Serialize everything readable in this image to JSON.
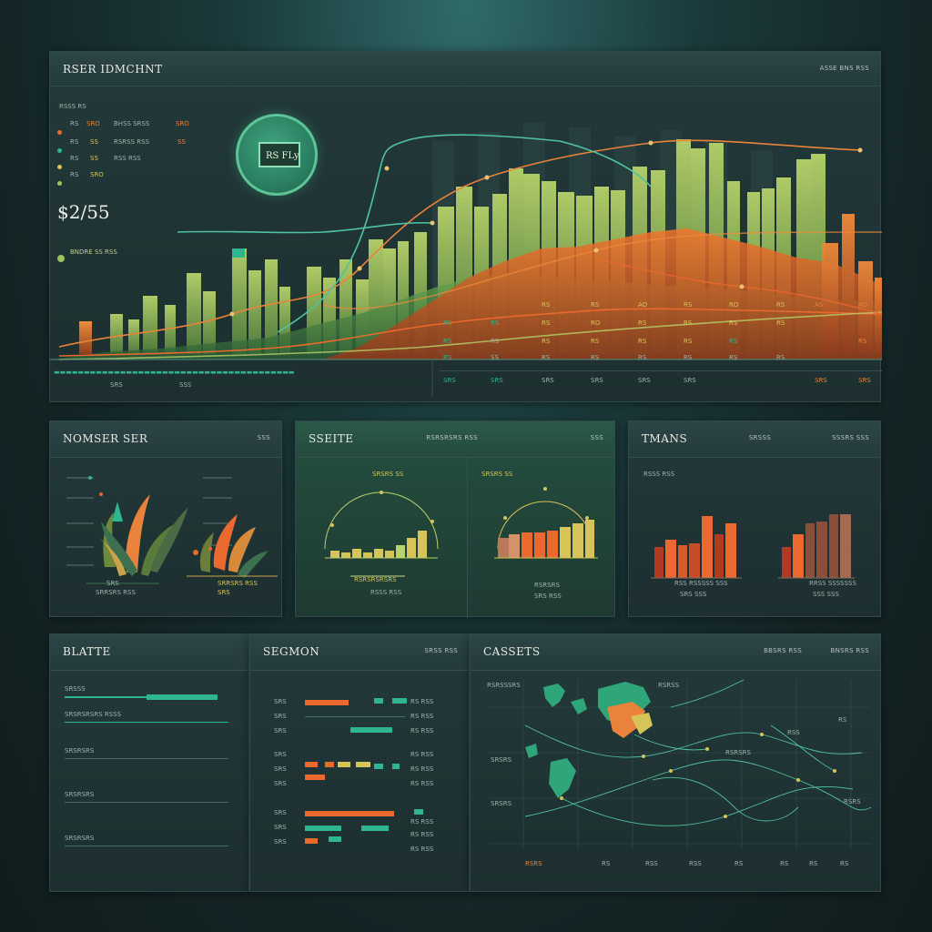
{
  "colors": {
    "accent_orange": "#e9692e",
    "accent_green": "#2fb590",
    "accent_yellow": "#d6c35a",
    "accent_lime": "#9cc45b",
    "panel_bg": "#1f3334",
    "background": "#142526"
  },
  "main_panel": {
    "title": "RSER IDMCHNT",
    "meta": "ASSE BNS RSS",
    "big_value": "$2/55",
    "sub_label": "BNDRE SS RSS",
    "badge_label": "RS FLy",
    "legend": [
      {
        "label": "RS",
        "value": "SRO",
        "tag": "BHSS SRSS",
        "color": "#e9823a"
      },
      {
        "label": "RS",
        "value": "SS",
        "tag": "RSRSS RSS",
        "color": "#2fb590"
      },
      {
        "label": "RS",
        "value": "SS",
        "tag": "RSS RSS",
        "color": "#d6c35a"
      },
      {
        "label": "RS",
        "value": "SRO",
        "tag": "",
        "color": "#9cc45b"
      }
    ],
    "top_note": "RSSS RS",
    "x_ticks_left": [
      "SRS",
      "SSS"
    ],
    "table_rows": [
      [
        "RS",
        "RS",
        "AO",
        "RS",
        "RO",
        "RS",
        "AS",
        "AO"
      ],
      [
        "RS",
        "RS",
        "RS",
        "RO",
        "RS",
        "RS",
        "RS",
        "RS"
      ],
      [
        "RS",
        "RS",
        "RS",
        "RS",
        "RS",
        "RS",
        "RS",
        "RS"
      ],
      [
        "RS",
        "SS",
        "RS",
        "RS",
        "RS",
        "RS",
        "RS",
        "RS"
      ],
      [
        "SRS",
        "SRS",
        "SRS",
        "SRS",
        "SRS",
        "SRS",
        "SRS",
        "SRS"
      ]
    ]
  },
  "panel_nomser": {
    "title": "NOMSER SER",
    "meta": "SSS",
    "footer_a": "SRS",
    "footer_b": "SRRSRS RSS"
  },
  "panel_site": {
    "title": "SSEITE",
    "meta_a": "RSRSRSRS RSS",
    "meta_b": "SSS",
    "label_a": "RSRSRSRSRS",
    "label_b": "RSSS RSS",
    "right_label_a": "RSRSRS",
    "right_label_b": "SRS RSS",
    "top_tag": "SRSRS SS"
  },
  "panel_tmans": {
    "title": "TMANS",
    "meta_a": "SRSSS",
    "meta_b": "SSSRS SSS",
    "left_caption_a": "RSS RSSSSS SSS",
    "left_caption_b": "SRS SSS",
    "right_caption_a": "RRSS SSSSSSS",
    "right_caption_b": "SSS SSS",
    "top_tag": "RSSS RSS"
  },
  "panel_blatte": {
    "title": "BLATTE",
    "rows": [
      "SRSSS",
      "SRSRSRSRS RSSS",
      "SRSRSRS",
      "SRSRSRS",
      "SRSRSRS"
    ]
  },
  "panel_segmon": {
    "title": "SEGMON",
    "meta": "SRSS RSS",
    "rows_a": [
      "SRS",
      "SRS",
      "SRS"
    ],
    "rows_b": [
      "SRS",
      "SRS",
      "SRS"
    ],
    "rows_c": [
      "SRS",
      "SRS",
      "SRS"
    ],
    "right_labels": [
      "RS RSS",
      "RS RSS",
      "RS RSS",
      "RS RSS",
      "RS RSS",
      "RS RSS",
      "RS RSS",
      "RS RSS",
      "RS RSS"
    ]
  },
  "panel_cassets": {
    "title": "CASSETS",
    "meta_a": "BBSRS RSS",
    "meta_b": "BNSRS RSS",
    "x_ticks": [
      "RSRS",
      "RS",
      "RSS",
      "RSS",
      "RS",
      "RS",
      "RS",
      "RS"
    ],
    "labels": [
      "RSRSSSRS",
      "RSRSS",
      "SRSRS",
      "RSS",
      "RSRSRS",
      "SRSRS",
      "RS",
      "RSRS"
    ]
  }
}
